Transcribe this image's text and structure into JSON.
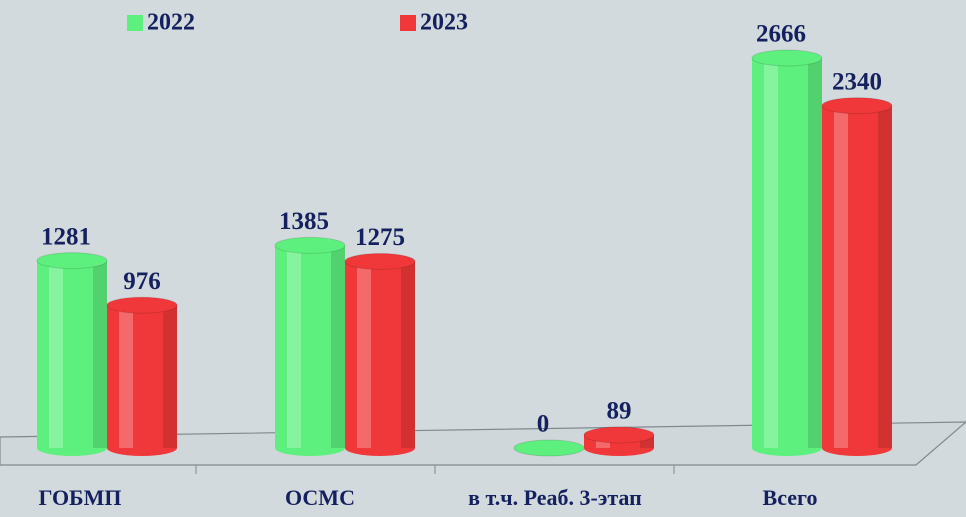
{
  "chart_data": {
    "type": "bar",
    "categories": [
      "ГОБМП",
      "ОСМС",
      "в т.ч. Реаб. 3-этап",
      "Всего"
    ],
    "series": [
      {
        "name": "2022",
        "color": "#5ef07e",
        "values": [
          1281,
          1385,
          0,
          2666
        ]
      },
      {
        "name": "2023",
        "color": "#f0383a",
        "values": [
          976,
          1275,
          89,
          2340
        ]
      }
    ]
  }
}
